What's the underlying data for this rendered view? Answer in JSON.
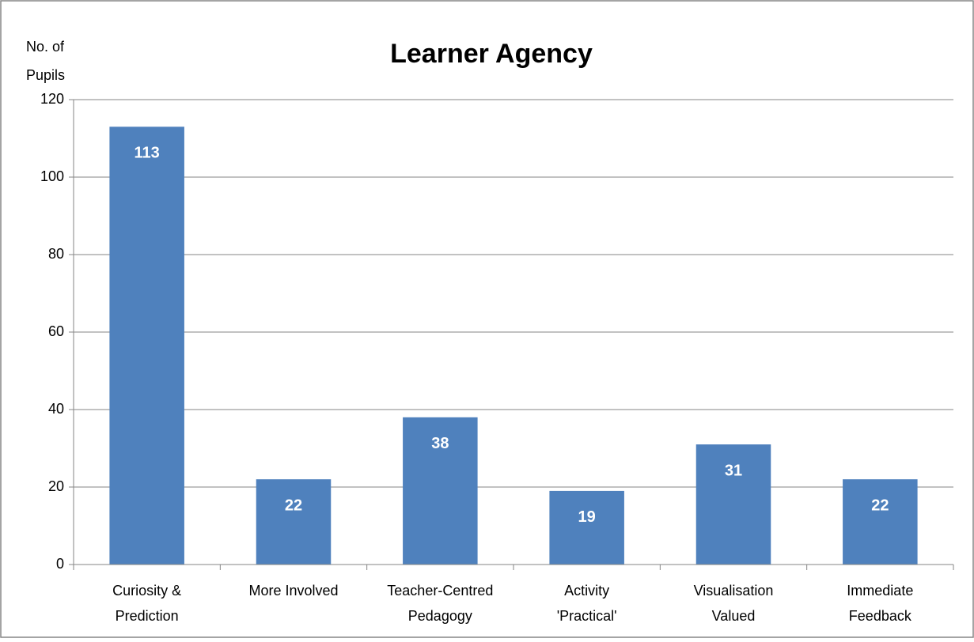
{
  "chart_data": {
    "type": "bar",
    "title": "Learner Agency",
    "y_label": [
      "No. of",
      "Pupils"
    ],
    "categories": [
      [
        "Curiosity &",
        "Prediction"
      ],
      [
        "More Involved"
      ],
      [
        "Teacher-Centred",
        "Pedagogy"
      ],
      [
        "Activity",
        "'Practical'"
      ],
      [
        "Visualisation",
        "Valued"
      ],
      [
        "Immediate",
        "Feedback"
      ]
    ],
    "values": [
      113,
      22,
      38,
      19,
      31,
      22
    ],
    "color": "#4f81bd",
    "ylim": [
      0,
      120
    ],
    "yticks": [
      0,
      20,
      40,
      60,
      80,
      100,
      120
    ],
    "grid": true
  }
}
